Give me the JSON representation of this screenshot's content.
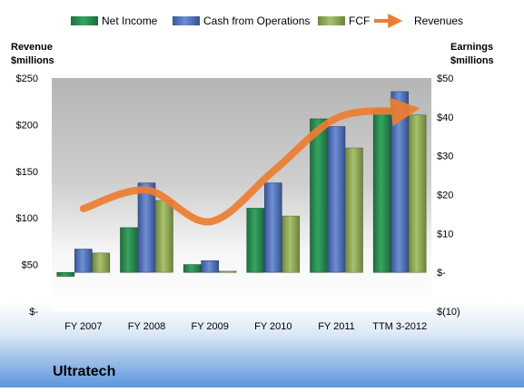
{
  "chart_data": {
    "type": "bar",
    "title": "",
    "company": "Ultratech",
    "categories": [
      "FY 2007",
      "FY 2008",
      "FY 2009",
      "FY 2010",
      "FY 2011",
      "TTM 3-2012"
    ],
    "left_axis": {
      "label_line1": "Revenue",
      "label_line2": "$millions",
      "ylim": [
        0,
        250
      ],
      "ticks": [
        0,
        50,
        100,
        150,
        200,
        250
      ],
      "tick_labels": [
        "$-",
        "$50",
        "$100",
        "$150",
        "$200",
        "$250"
      ]
    },
    "right_axis": {
      "label_line1": "Earnings",
      "label_line2": "$millions",
      "ylim": [
        -10,
        50
      ],
      "ticks": [
        -10,
        0,
        10,
        20,
        30,
        40,
        50
      ],
      "tick_labels": [
        "$(10)",
        "$-",
        "$10",
        "$20",
        "$30",
        "$40",
        "$50"
      ]
    },
    "series": [
      {
        "name": "Net Income",
        "type": "bar",
        "axis": "right",
        "color": "#2e8b57",
        "values": [
          -1.0,
          11.5,
          2.0,
          16.5,
          39.5,
          42.0
        ]
      },
      {
        "name": "Cash from Operations",
        "type": "bar",
        "axis": "right",
        "color": "#4f6fb3",
        "values": [
          6.0,
          23.0,
          3.0,
          23.0,
          37.5,
          46.5
        ]
      },
      {
        "name": "FCF",
        "type": "bar",
        "axis": "right",
        "color": "#8fa65a",
        "values": [
          5.0,
          18.5,
          0.3,
          14.5,
          32.0,
          40.5
        ]
      },
      {
        "name": "Revenues",
        "type": "line",
        "axis": "left",
        "color": "#ed7d31",
        "values": [
          110,
          130,
          96,
          150,
          207,
          215
        ]
      }
    ],
    "legend_position": "top",
    "grid": false
  }
}
